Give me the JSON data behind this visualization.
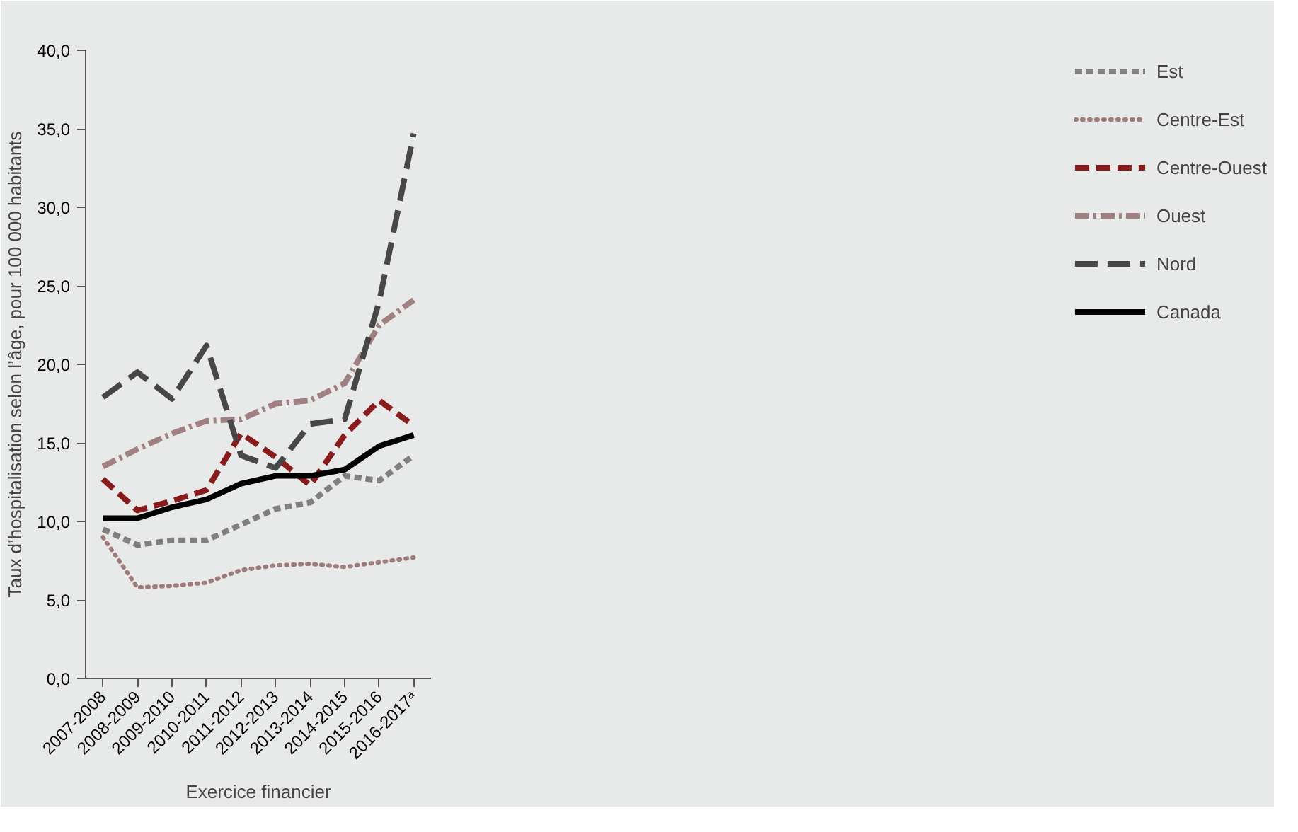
{
  "chart_data": {
    "type": "line",
    "xlabel": "Exercice financier",
    "ylabel": "Taux d’hospitalisation selon l’âge, pour 100 000 habitants",
    "categories": [
      "2007-2008",
      "2008-2009",
      "2009-2010",
      "2010-2011",
      "2011-2012",
      "2012-2013",
      "2013-2014",
      "2014-2015",
      "2015-2016",
      "2016-2017ᵃ"
    ],
    "ylim": [
      0,
      40
    ],
    "yticks": [
      {
        "value": 0,
        "label": "0,0"
      },
      {
        "value": 5,
        "label": "5,0"
      },
      {
        "value": 10,
        "label": "10,0"
      },
      {
        "value": 15,
        "label": "15,0"
      },
      {
        "value": 20,
        "label": "20,0"
      },
      {
        "value": 25,
        "label": "25,0"
      },
      {
        "value": 30,
        "label": "30,0"
      },
      {
        "value": 35,
        "label": "35,0"
      },
      {
        "value": 40,
        "label": "40,0"
      }
    ],
    "grid": false,
    "legend": "right",
    "marker": "none",
    "series": [
      {
        "name": "Est",
        "color": "#808080",
        "line_style": "dashed",
        "values": [
          9.5,
          8.5,
          8.8,
          8.8,
          9.8,
          10.8,
          11.2,
          12.9,
          12.6,
          14.2
        ]
      },
      {
        "name": "Centre-Est",
        "color": "#9e7b7b",
        "line_style": "dotted",
        "values": [
          9.0,
          5.8,
          5.9,
          6.1,
          6.9,
          7.2,
          7.3,
          7.1,
          7.4,
          7.7
        ]
      },
      {
        "name": "Centre-Ouest",
        "color": "#8b1a1a",
        "line_style": "dashed",
        "values": [
          12.7,
          10.7,
          11.3,
          12.0,
          15.6,
          14.1,
          12.3,
          15.5,
          17.7,
          16.1
        ]
      },
      {
        "name": "Ouest",
        "color": "#a08080",
        "line_style": "dashed",
        "values": [
          13.5,
          14.6,
          15.6,
          16.4,
          16.5,
          17.5,
          17.7,
          18.8,
          22.5,
          24.1
        ]
      },
      {
        "name": "Nord",
        "color": "#474747",
        "line_style": "dashed",
        "values": [
          17.9,
          19.5,
          17.8,
          21.2,
          14.2,
          13.4,
          16.2,
          16.5,
          24.0,
          34.7
        ]
      },
      {
        "name": "Canada",
        "color": "#000000",
        "line_style": "solid",
        "values": [
          10.2,
          10.2,
          10.9,
          11.4,
          12.4,
          12.9,
          12.9,
          13.3,
          14.8,
          15.5
        ]
      }
    ]
  }
}
